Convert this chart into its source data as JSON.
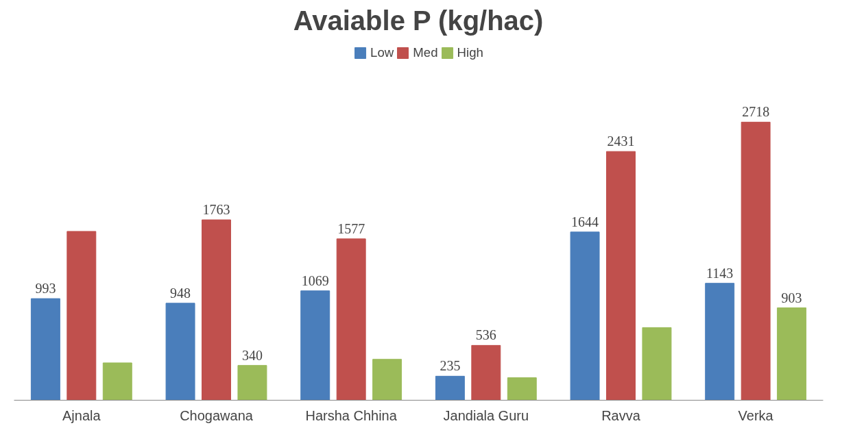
{
  "chart_data": {
    "type": "bar",
    "title": "Avaiable P (kg/hac)",
    "categories": [
      "Ajnala",
      "Chogawana",
      "Harsha Chhina",
      "Jandiala Guru",
      "Ravva",
      "Verka"
    ],
    "series": [
      {
        "name": "Low",
        "color": "#4a7ebb",
        "values": [
          993,
          948,
          1069,
          235,
          1644,
          1143
        ],
        "value_labels": [
          "993",
          "948",
          "1069",
          "235",
          "1644",
          "1143"
        ]
      },
      {
        "name": "Med",
        "color": "#c0504d",
        "values": [
          1650,
          1763,
          1577,
          536,
          2431,
          2718
        ],
        "value_labels": [
          null,
          "1763",
          "1577",
          "536",
          "2431",
          "2718"
        ]
      },
      {
        "name": "High",
        "color": "#9bbb59",
        "values": [
          365,
          340,
          400,
          220,
          710,
          903
        ],
        "value_labels": [
          null,
          "340",
          null,
          null,
          null,
          "903"
        ]
      }
    ],
    "legend": "top center",
    "grid": false
  }
}
